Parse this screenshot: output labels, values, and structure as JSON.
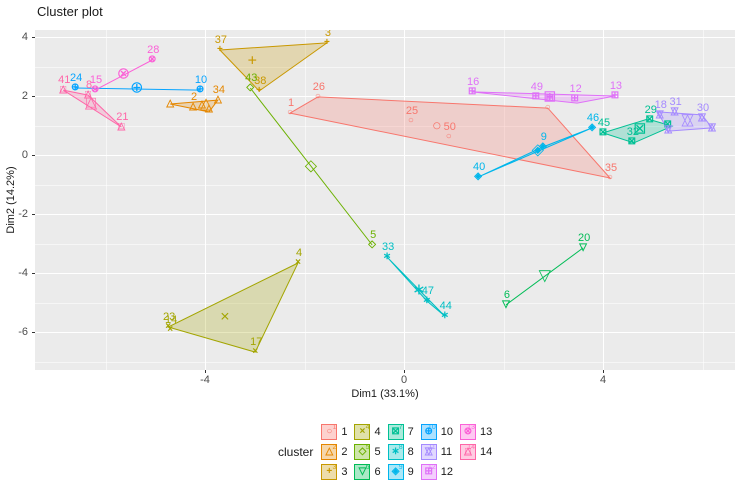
{
  "title": "Cluster plot",
  "axes": {
    "xlabel": "Dim1 (33.1%)",
    "ylabel": "Dim2 (14.2%)",
    "x_major": [
      -4,
      0,
      4
    ],
    "x_minor": [
      -6,
      -2,
      2,
      6
    ],
    "y_major": [
      4,
      2,
      0,
      -2,
      -4,
      -6
    ],
    "y_minor": [
      3,
      1,
      -1,
      -3,
      -5,
      -7
    ],
    "x_range": [
      -7.4,
      6.65
    ],
    "y_range": [
      -7.3,
      4.24
    ]
  },
  "legend": {
    "title": "cluster",
    "rows": 3
  },
  "chart_data": {
    "type": "scatter",
    "title": "Cluster plot",
    "xlabel": "Dim1 (33.1%)",
    "ylabel": "Dim2 (14.2%)",
    "grid": true,
    "legend_position": "bottom",
    "hull_fill_opacity": 0.25,
    "clusters": [
      {
        "id": 1,
        "color": "#F8766D",
        "marker": [
          "○"
        ],
        "centroid": {
          "x": 0.66,
          "y": 0.95
        },
        "hull": [
          [
            -2.29,
            1.42
          ],
          [
            -1.73,
            1.97
          ],
          [
            2.89,
            1.59
          ],
          [
            4.14,
            -0.78
          ]
        ],
        "points": [
          {
            "label": "1",
            "x": -2.29,
            "y": 1.42
          },
          {
            "label": "26",
            "x": -1.73,
            "y": 1.97
          },
          {
            "label": "25",
            "x": 0.14,
            "y": 1.15
          },
          {
            "label": "50",
            "x": 0.9,
            "y": 0.61
          },
          {
            "label": "",
            "x": 2.89,
            "y": 1.59
          },
          {
            "label": "35",
            "x": 4.14,
            "y": -0.78
          }
        ]
      },
      {
        "id": 2,
        "color": "#E58700",
        "marker": [
          "△"
        ],
        "centroid": {
          "x": -3.98,
          "y": 1.7
        },
        "hull": [
          [
            -4.7,
            1.73
          ],
          [
            -3.74,
            1.86
          ],
          [
            -3.92,
            1.46
          ]
        ],
        "points": [
          {
            "label": "2",
            "x": -4.24,
            "y": 1.63
          },
          {
            "label": "34",
            "x": -3.74,
            "y": 1.86
          },
          {
            "label": "",
            "x": -4.7,
            "y": 1.73
          },
          {
            "label": "",
            "x": -4.06,
            "y": 1.7
          },
          {
            "label": "",
            "x": -3.92,
            "y": 1.56
          }
        ]
      },
      {
        "id": 3,
        "color": "#C99800",
        "marker": [
          "+"
        ],
        "centroid": {
          "x": -3.05,
          "y": 3.15
        },
        "hull": [
          [
            -3.7,
            3.56
          ],
          [
            -1.55,
            3.8
          ],
          [
            -2.91,
            2.17
          ]
        ],
        "points": [
          {
            "label": "37",
            "x": -3.7,
            "y": 3.56
          },
          {
            "label": "3",
            "x": -1.55,
            "y": 3.8
          },
          {
            "label": "38",
            "x": -2.91,
            "y": 2.17
          }
        ]
      },
      {
        "id": 4,
        "color": "#A3A500",
        "marker": [
          "×"
        ],
        "centroid": {
          "x": -3.6,
          "y": -5.53
        },
        "hull": [
          [
            -2.13,
            -3.66
          ],
          [
            -4.74,
            -5.83
          ],
          [
            -2.99,
            -6.68
          ]
        ],
        "points": [
          {
            "label": "4",
            "x": -2.13,
            "y": -3.66
          },
          {
            "label": "23",
            "x": -4.74,
            "y": -5.83
          },
          {
            "label": "14",
            "x": -4.7,
            "y": -5.92
          },
          {
            "label": "17",
            "x": -2.99,
            "y": -6.68
          }
        ]
      },
      {
        "id": 5,
        "color": "#6BB100",
        "marker": [
          "◇"
        ],
        "centroid": {
          "x": -1.87,
          "y": -0.39
        },
        "hull": [
          [
            -3.09,
            2.27
          ],
          [
            -0.64,
            -3.05
          ]
        ],
        "points": [
          {
            "label": "43",
            "x": -3.09,
            "y": 2.27
          },
          {
            "label": "5",
            "x": -0.64,
            "y": -3.05
          }
        ]
      },
      {
        "id": 6,
        "color": "#00BC56",
        "marker": [
          "▽"
        ],
        "centroid": {
          "x": 2.83,
          "y": -4.14
        },
        "hull": [
          [
            2.05,
            -5.08
          ],
          [
            3.6,
            -3.15
          ]
        ],
        "points": [
          {
            "label": "6",
            "x": 2.05,
            "y": -5.08
          },
          {
            "label": "20",
            "x": 3.6,
            "y": -3.15
          }
        ]
      },
      {
        "id": 7,
        "color": "#00C094",
        "marker": [
          "⊠"
        ],
        "centroid": {
          "x": 4.74,
          "y": 0.85
        },
        "hull": [
          [
            4.0,
            0.75
          ],
          [
            4.9,
            1.22
          ],
          [
            5.39,
            0.98
          ],
          [
            4.62,
            0.41
          ]
        ],
        "points": [
          {
            "label": "45",
            "x": 4.0,
            "y": 0.75
          },
          {
            "label": "32",
            "x": 4.58,
            "y": 0.44
          },
          {
            "label": "29",
            "x": 4.94,
            "y": 1.19
          },
          {
            "label": "",
            "x": 5.3,
            "y": 1.02
          }
        ]
      },
      {
        "id": 8,
        "color": "#00BFC4",
        "marker": [
          "∗"
        ],
        "centroid": {
          "x": 0.3,
          "y": -4.61
        },
        "hull": [
          [
            -0.34,
            -3.46
          ],
          [
            0.46,
            -4.95
          ],
          [
            0.82,
            -5.46
          ]
        ],
        "points": [
          {
            "label": "33",
            "x": -0.34,
            "y": -3.46
          },
          {
            "label": "47",
            "x": 0.46,
            "y": -4.95
          },
          {
            "label": "44",
            "x": 0.82,
            "y": -5.46
          }
        ]
      },
      {
        "id": 9,
        "color": "#00B6EB",
        "marker": [
          "◈"
        ],
        "centroid": {
          "x": 2.69,
          "y": 0.14
        },
        "hull": [
          [
            1.49,
            -0.75
          ],
          [
            2.79,
            0.27
          ],
          [
            3.78,
            0.92
          ]
        ],
        "points": [
          {
            "label": "40",
            "x": 1.49,
            "y": -0.75
          },
          {
            "label": "9",
            "x": 2.79,
            "y": 0.27
          },
          {
            "label": "46",
            "x": 3.78,
            "y": 0.92
          }
        ]
      },
      {
        "id": 10,
        "color": "#06A4FF",
        "marker": [
          "⊕"
        ],
        "centroid": {
          "x": -5.37,
          "y": 2.24
        },
        "hull": [
          [
            -6.61,
            2.27
          ],
          [
            -4.1,
            2.2
          ]
        ],
        "points": [
          {
            "label": "24",
            "x": -6.61,
            "y": 2.27
          },
          {
            "label": "10",
            "x": -4.1,
            "y": 2.2
          }
        ]
      },
      {
        "id": 11,
        "color": "#A58AFF",
        "marker": [
          "△",
          "▽"
        ],
        "centroid": {
          "x": 5.7,
          "y": 1.15
        },
        "hull": [
          [
            5.1,
            1.46
          ],
          [
            5.99,
            1.36
          ],
          [
            6.19,
            0.92
          ],
          [
            5.31,
            0.81
          ]
        ],
        "points": [
          {
            "label": "18",
            "x": 5.14,
            "y": 1.36
          },
          {
            "label": "31",
            "x": 5.44,
            "y": 1.46
          },
          {
            "label": "30",
            "x": 5.99,
            "y": 1.25
          },
          {
            "label": "",
            "x": 6.19,
            "y": 0.92
          },
          {
            "label": "",
            "x": 5.31,
            "y": 0.85
          }
        ]
      },
      {
        "id": 12,
        "color": "#DF70F8",
        "marker": [
          "⊞"
        ],
        "centroid": {
          "x": 2.93,
          "y": 1.93
        },
        "hull": [
          [
            1.37,
            2.14
          ],
          [
            4.24,
            2.0
          ],
          [
            3.48,
            1.76
          ]
        ],
        "points": [
          {
            "label": "16",
            "x": 1.37,
            "y": 2.14
          },
          {
            "label": "49",
            "x": 2.65,
            "y": 1.97
          },
          {
            "label": "12",
            "x": 3.43,
            "y": 1.9
          },
          {
            "label": "13",
            "x": 4.24,
            "y": 2.0
          },
          {
            "label": "",
            "x": 2.93,
            "y": 1.9
          }
        ]
      },
      {
        "id": 13,
        "color": "#FB61D7",
        "marker": [
          "⊗"
        ],
        "centroid": {
          "x": -5.64,
          "y": 2.71
        },
        "hull": [
          [
            -5.06,
            3.22
          ],
          [
            -6.21,
            2.2
          ]
        ],
        "points": [
          {
            "label": "28",
            "x": -5.06,
            "y": 3.22
          },
          {
            "label": "15",
            "x": -6.21,
            "y": 2.2
          }
        ]
      },
      {
        "id": 14,
        "color": "#FF66A8",
        "marker": [
          "□",
          "△"
        ],
        "centroid": {
          "x": -6.29,
          "y": 1.73
        },
        "hull": [
          [
            -6.85,
            2.2
          ],
          [
            -6.35,
            2.03
          ],
          [
            -5.68,
            0.95
          ]
        ],
        "points": [
          {
            "label": "41",
            "x": -6.85,
            "y": 2.2
          },
          {
            "label": "8",
            "x": -6.35,
            "y": 2.03
          },
          {
            "label": "21",
            "x": -5.68,
            "y": 0.95
          }
        ]
      }
    ]
  }
}
